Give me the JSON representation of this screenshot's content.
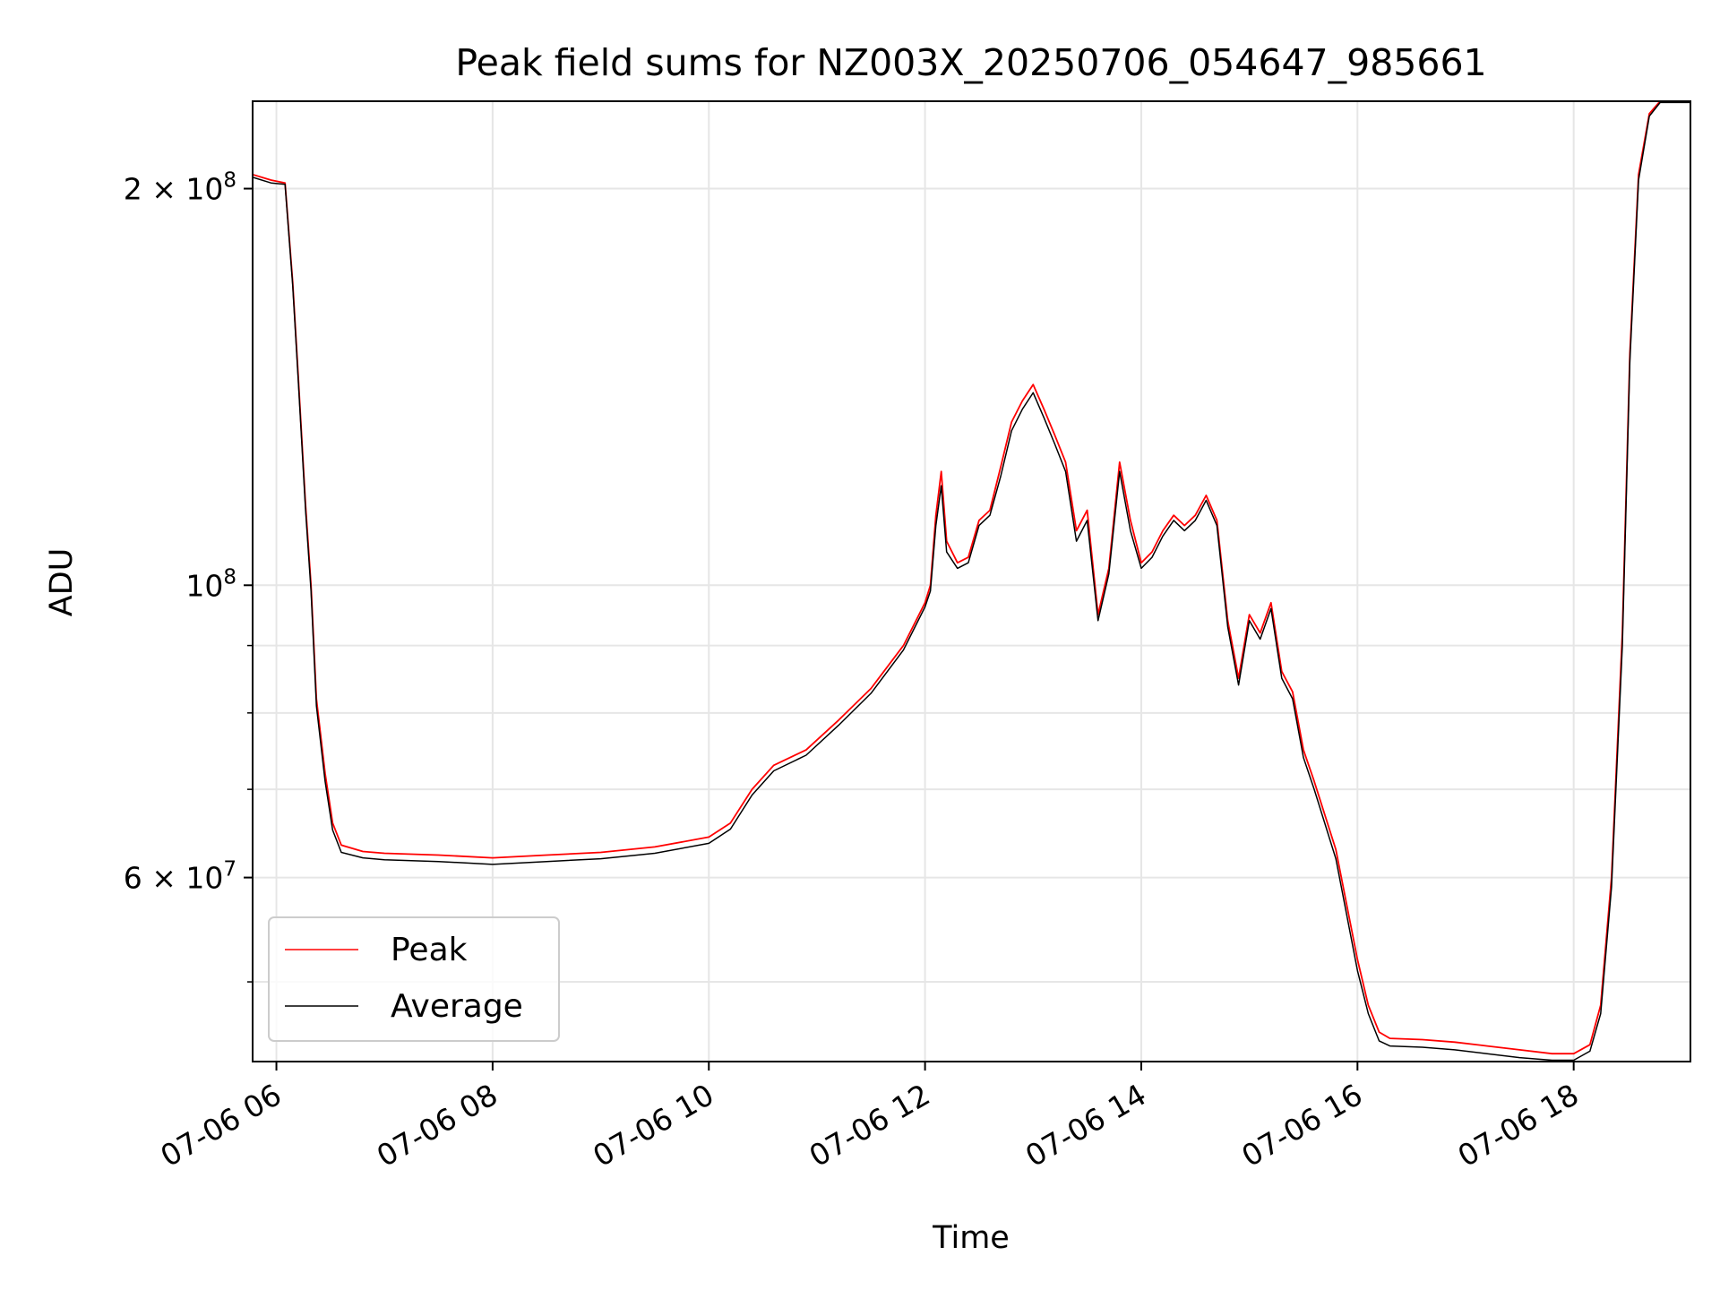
{
  "chart_data": {
    "type": "line",
    "title": "Peak field sums for NZ003X_20250706_054647_985661",
    "xlabel": "Time",
    "ylabel": "ADU",
    "x_unit": "hours of day (07-06)",
    "xlim": [
      5.78,
      19.08
    ],
    "ylim": [
      43500000,
      233000000
    ],
    "yscale": "log",
    "grid": true,
    "legend_position": "lower-left",
    "x_ticks": [
      {
        "value": 6,
        "label": "07-06 06"
      },
      {
        "value": 8,
        "label": "07-06 08"
      },
      {
        "value": 10,
        "label": "07-06 10"
      },
      {
        "value": 12,
        "label": "07-06 12"
      },
      {
        "value": 14,
        "label": "07-06 14"
      },
      {
        "value": 16,
        "label": "07-06 16"
      },
      {
        "value": 18,
        "label": "07-06 18"
      }
    ],
    "y_major_ticks": [
      {
        "value": 60000000,
        "mantissa": "6",
        "exponent": "7",
        "kind": "times"
      },
      {
        "value": 100000000,
        "mantissa": "",
        "exponent": "8",
        "kind": "power"
      },
      {
        "value": 200000000,
        "mantissa": "2",
        "exponent": "8",
        "kind": "times"
      }
    ],
    "y_minor_ticks": [
      50000000,
      70000000,
      80000000,
      90000000
    ],
    "series": [
      {
        "name": "Peak",
        "color": "#ff0000",
        "points": [
          [
            5.78,
            205000000
          ],
          [
            5.95,
            203000000
          ],
          [
            6.08,
            202000000
          ],
          [
            6.15,
            170000000
          ],
          [
            6.2,
            145000000
          ],
          [
            6.27,
            115000000
          ],
          [
            6.32,
            100000000
          ],
          [
            6.37,
            82000000
          ],
          [
            6.45,
            72000000
          ],
          [
            6.52,
            66000000
          ],
          [
            6.6,
            63500000
          ],
          [
            6.8,
            62800000
          ],
          [
            7.0,
            62600000
          ],
          [
            7.5,
            62400000
          ],
          [
            8.0,
            62100000
          ],
          [
            8.5,
            62400000
          ],
          [
            9.0,
            62700000
          ],
          [
            9.5,
            63300000
          ],
          [
            10.0,
            64400000
          ],
          [
            10.2,
            66000000
          ],
          [
            10.4,
            70000000
          ],
          [
            10.6,
            73000000
          ],
          [
            10.9,
            75000000
          ],
          [
            11.2,
            79000000
          ],
          [
            11.5,
            83500000
          ],
          [
            11.8,
            90000000
          ],
          [
            12.0,
            97000000
          ],
          [
            12.05,
            100000000
          ],
          [
            12.1,
            113000000
          ],
          [
            12.15,
            122000000
          ],
          [
            12.2,
            108000000
          ],
          [
            12.3,
            104000000
          ],
          [
            12.4,
            105000000
          ],
          [
            12.5,
            112000000
          ],
          [
            12.6,
            114000000
          ],
          [
            12.7,
            123000000
          ],
          [
            12.8,
            133000000
          ],
          [
            12.9,
            138000000
          ],
          [
            13.0,
            142000000
          ],
          [
            13.1,
            136000000
          ],
          [
            13.2,
            130000000
          ],
          [
            13.3,
            124000000
          ],
          [
            13.4,
            110000000
          ],
          [
            13.5,
            114000000
          ],
          [
            13.6,
            95000000
          ],
          [
            13.7,
            103000000
          ],
          [
            13.8,
            124000000
          ],
          [
            13.9,
            112000000
          ],
          [
            14.0,
            104000000
          ],
          [
            14.1,
            106000000
          ],
          [
            14.2,
            110000000
          ],
          [
            14.3,
            113000000
          ],
          [
            14.4,
            111000000
          ],
          [
            14.5,
            113000000
          ],
          [
            14.6,
            117000000
          ],
          [
            14.7,
            112000000
          ],
          [
            14.8,
            94000000
          ],
          [
            14.9,
            85000000
          ],
          [
            15.0,
            95000000
          ],
          [
            15.1,
            92000000
          ],
          [
            15.2,
            97000000
          ],
          [
            15.3,
            86000000
          ],
          [
            15.4,
            83000000
          ],
          [
            15.5,
            75000000
          ],
          [
            15.6,
            71000000
          ],
          [
            15.8,
            63000000
          ],
          [
            16.0,
            52000000
          ],
          [
            16.1,
            48000000
          ],
          [
            16.2,
            45800000
          ],
          [
            16.3,
            45300000
          ],
          [
            16.6,
            45200000
          ],
          [
            16.9,
            45000000
          ],
          [
            17.2,
            44700000
          ],
          [
            17.5,
            44400000
          ],
          [
            17.8,
            44100000
          ],
          [
            18.0,
            44100000
          ],
          [
            18.15,
            44800000
          ],
          [
            18.25,
            48000000
          ],
          [
            18.35,
            60000000
          ],
          [
            18.45,
            92000000
          ],
          [
            18.52,
            150000000
          ],
          [
            18.6,
            205000000
          ],
          [
            18.7,
            228000000
          ],
          [
            18.8,
            233000000
          ],
          [
            19.08,
            233000000
          ]
        ]
      },
      {
        "name": "Average",
        "color": "#000000",
        "points": [
          [
            5.78,
            204000000
          ],
          [
            5.95,
            202000000
          ],
          [
            6.08,
            201500000
          ],
          [
            6.15,
            169000000
          ],
          [
            6.2,
            144000000
          ],
          [
            6.27,
            114000000
          ],
          [
            6.32,
            99000000
          ],
          [
            6.37,
            81000000
          ],
          [
            6.45,
            71000000
          ],
          [
            6.52,
            65200000
          ],
          [
            6.6,
            62700000
          ],
          [
            6.8,
            62100000
          ],
          [
            7.0,
            61900000
          ],
          [
            7.5,
            61700000
          ],
          [
            8.0,
            61400000
          ],
          [
            8.5,
            61700000
          ],
          [
            9.0,
            62000000
          ],
          [
            9.5,
            62600000
          ],
          [
            10.0,
            63700000
          ],
          [
            10.2,
            65300000
          ],
          [
            10.4,
            69300000
          ],
          [
            10.6,
            72300000
          ],
          [
            10.9,
            74300000
          ],
          [
            11.2,
            78300000
          ],
          [
            11.5,
            82800000
          ],
          [
            11.8,
            89300000
          ],
          [
            12.0,
            96300000
          ],
          [
            12.05,
            99000000
          ],
          [
            12.1,
            111000000
          ],
          [
            12.15,
            119000000
          ],
          [
            12.2,
            106000000
          ],
          [
            12.3,
            103000000
          ],
          [
            12.4,
            104000000
          ],
          [
            12.5,
            111000000
          ],
          [
            12.6,
            113000000
          ],
          [
            12.7,
            121000000
          ],
          [
            12.8,
            131000000
          ],
          [
            12.9,
            136000000
          ],
          [
            13.0,
            140000000
          ],
          [
            13.1,
            134000000
          ],
          [
            13.2,
            128000000
          ],
          [
            13.3,
            122000000
          ],
          [
            13.4,
            108000000
          ],
          [
            13.5,
            112000000
          ],
          [
            13.6,
            94000000
          ],
          [
            13.7,
            102000000
          ],
          [
            13.8,
            122000000
          ],
          [
            13.9,
            110000000
          ],
          [
            14.0,
            103000000
          ],
          [
            14.1,
            105000000
          ],
          [
            14.2,
            109000000
          ],
          [
            14.3,
            112000000
          ],
          [
            14.4,
            110000000
          ],
          [
            14.5,
            112000000
          ],
          [
            14.6,
            116000000
          ],
          [
            14.7,
            111000000
          ],
          [
            14.8,
            93000000
          ],
          [
            14.9,
            84000000
          ],
          [
            15.0,
            94000000
          ],
          [
            15.1,
            91000000
          ],
          [
            15.2,
            96000000
          ],
          [
            15.3,
            85000000
          ],
          [
            15.4,
            82000000
          ],
          [
            15.5,
            74000000
          ],
          [
            15.6,
            70000000
          ],
          [
            15.8,
            62000000
          ],
          [
            16.0,
            51000000
          ],
          [
            16.1,
            47300000
          ],
          [
            16.2,
            45100000
          ],
          [
            16.3,
            44700000
          ],
          [
            16.6,
            44600000
          ],
          [
            16.9,
            44400000
          ],
          [
            17.2,
            44100000
          ],
          [
            17.5,
            43800000
          ],
          [
            17.8,
            43600000
          ],
          [
            18.0,
            43600000
          ],
          [
            18.15,
            44300000
          ],
          [
            18.25,
            47300000
          ],
          [
            18.35,
            59000000
          ],
          [
            18.45,
            90000000
          ],
          [
            18.52,
            148000000
          ],
          [
            18.6,
            203000000
          ],
          [
            18.7,
            227000000
          ],
          [
            18.8,
            232500000
          ],
          [
            19.08,
            232500000
          ]
        ]
      }
    ]
  }
}
